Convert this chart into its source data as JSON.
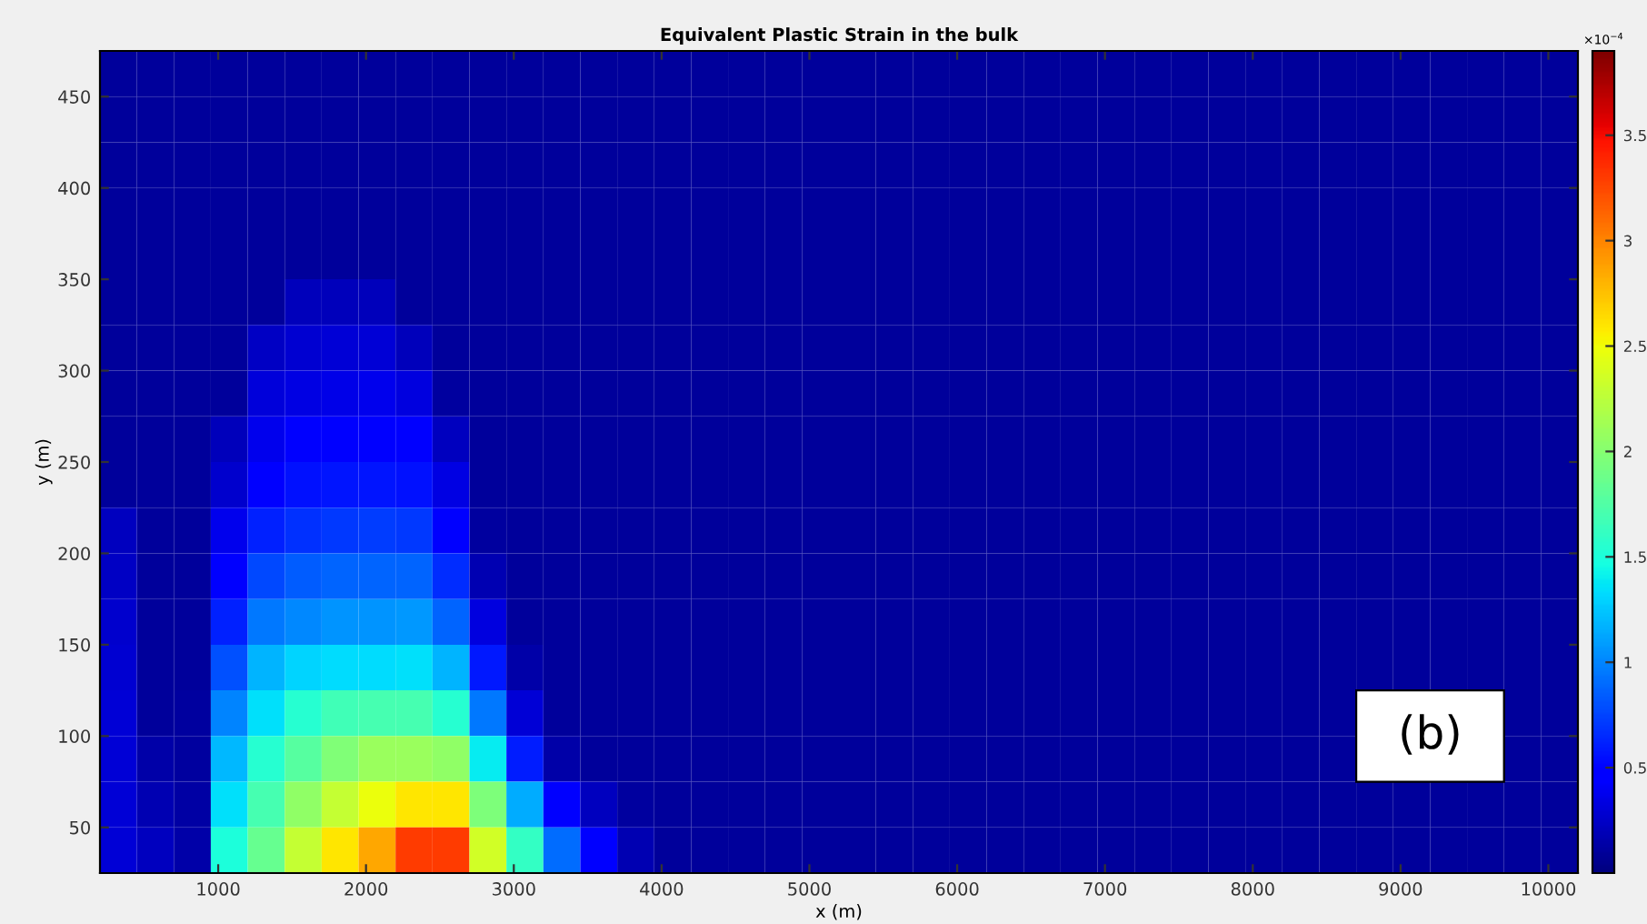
{
  "chart_data": {
    "type": "heatmap",
    "title": "Equivalent Plastic Strain in the bulk",
    "xlabel": "x (m)",
    "ylabel": "y (m)",
    "clabel": "×10$^{−4}$",
    "annotations": [
      "(b)"
    ],
    "x": [
      325,
      575,
      825,
      1075,
      1325,
      1575,
      1825,
      2075,
      2325,
      2575,
      2825,
      3075,
      3325,
      3575,
      3825,
      4075,
      4325,
      4575,
      4825,
      5075,
      5325,
      5575,
      5825,
      6075,
      6325,
      6575,
      6825,
      7075,
      7325,
      7575,
      7825,
      8075,
      8325,
      8575,
      8825,
      9075,
      9325,
      9575,
      9825,
      10075
    ],
    "y": [
      462.5,
      437.5,
      412.5,
      387.5,
      362.5,
      337.5,
      312.5,
      287.5,
      262.5,
      237.5,
      212.5,
      187.5,
      162.5,
      137.5,
      112.5,
      87.5,
      62.5,
      37.5
    ],
    "xlim": [
      200,
      10200
    ],
    "xticks": [
      1000,
      2000,
      3000,
      4000,
      5000,
      6000,
      7000,
      8000,
      9000,
      10000
    ],
    "ylim": [
      25,
      475
    ],
    "yticks": [
      50,
      100,
      150,
      200,
      250,
      300,
      350,
      400,
      450
    ],
    "clim": [
      0,
      3.9
    ],
    "cticks": [
      0.5,
      1,
      1.5,
      2,
      2.5,
      3,
      3.5
    ],
    "cells": [
      [
        0.1,
        0.1,
        0.1,
        0.1,
        0.1,
        0.1,
        0.1,
        0.1,
        0.1,
        0.1,
        0.1,
        0.1,
        0.1,
        0.1,
        0.1,
        0.1,
        0.1,
        0.1,
        0.1,
        0.1,
        0.1,
        0.1,
        0.1,
        0.1,
        0.1,
        0.1,
        0.1,
        0.1,
        0.1,
        0.1,
        0.1,
        0.1,
        0.1,
        0.1,
        0.1,
        0.1,
        0.1,
        0.1,
        0.1,
        0.1
      ],
      [
        0.1,
        0.1,
        0.1,
        0.1,
        0.1,
        0.1,
        0.1,
        0.1,
        0.1,
        0.1,
        0.1,
        0.1,
        0.1,
        0.1,
        0.1,
        0.1,
        0.1,
        0.1,
        0.1,
        0.1,
        0.1,
        0.1,
        0.1,
        0.1,
        0.1,
        0.1,
        0.1,
        0.1,
        0.1,
        0.1,
        0.1,
        0.1,
        0.1,
        0.1,
        0.1,
        0.1,
        0.1,
        0.1,
        0.1,
        0.1
      ],
      [
        0.1,
        0.1,
        0.1,
        0.1,
        0.1,
        0.1,
        0.1,
        0.1,
        0.1,
        0.1,
        0.1,
        0.1,
        0.1,
        0.1,
        0.1,
        0.1,
        0.1,
        0.1,
        0.1,
        0.1,
        0.1,
        0.1,
        0.1,
        0.1,
        0.1,
        0.1,
        0.1,
        0.1,
        0.1,
        0.1,
        0.1,
        0.1,
        0.1,
        0.1,
        0.1,
        0.1,
        0.1,
        0.1,
        0.1,
        0.1
      ],
      [
        0.1,
        0.1,
        0.1,
        0.1,
        0.1,
        0.1,
        0.1,
        0.1,
        0.1,
        0.1,
        0.1,
        0.1,
        0.1,
        0.1,
        0.1,
        0.1,
        0.1,
        0.1,
        0.1,
        0.1,
        0.1,
        0.1,
        0.1,
        0.1,
        0.1,
        0.1,
        0.1,
        0.1,
        0.1,
        0.1,
        0.1,
        0.1,
        0.1,
        0.1,
        0.1,
        0.1,
        0.1,
        0.1,
        0.1,
        0.1
      ],
      [
        0.1,
        0.1,
        0.1,
        0.1,
        0.1,
        0.1,
        0.1,
        0.1,
        0.1,
        0.1,
        0.1,
        0.1,
        0.1,
        0.1,
        0.1,
        0.1,
        0.1,
        0.1,
        0.1,
        0.1,
        0.1,
        0.1,
        0.1,
        0.1,
        0.1,
        0.1,
        0.1,
        0.1,
        0.1,
        0.1,
        0.1,
        0.1,
        0.1,
        0.1,
        0.1,
        0.1,
        0.1,
        0.1,
        0.1,
        0.1
      ],
      [
        0.1,
        0.1,
        0.1,
        0.1,
        0.1,
        0.2,
        0.21,
        0.2,
        0.1,
        0.1,
        0.1,
        0.1,
        0.1,
        0.1,
        0.1,
        0.1,
        0.1,
        0.1,
        0.1,
        0.1,
        0.1,
        0.1,
        0.1,
        0.1,
        0.1,
        0.1,
        0.1,
        0.1,
        0.1,
        0.1,
        0.1,
        0.1,
        0.1,
        0.1,
        0.1,
        0.1,
        0.1,
        0.1,
        0.1,
        0.1
      ],
      [
        0.1,
        0.1,
        0.1,
        0.1,
        0.24,
        0.28,
        0.29,
        0.29,
        0.2,
        0.1,
        0.1,
        0.1,
        0.1,
        0.1,
        0.1,
        0.1,
        0.1,
        0.1,
        0.1,
        0.1,
        0.1,
        0.1,
        0.1,
        0.1,
        0.1,
        0.1,
        0.1,
        0.1,
        0.1,
        0.1,
        0.1,
        0.1,
        0.1,
        0.1,
        0.1,
        0.1,
        0.1,
        0.1,
        0.1,
        0.1
      ],
      [
        0.1,
        0.1,
        0.1,
        0.1,
        0.31,
        0.35,
        0.36,
        0.37,
        0.32,
        0.12,
        0.1,
        0.1,
        0.1,
        0.1,
        0.1,
        0.1,
        0.1,
        0.1,
        0.1,
        0.1,
        0.1,
        0.1,
        0.1,
        0.1,
        0.1,
        0.1,
        0.1,
        0.1,
        0.1,
        0.1,
        0.1,
        0.1,
        0.1,
        0.1,
        0.1,
        0.1,
        0.1,
        0.1,
        0.1,
        0.1
      ],
      [
        0.1,
        0.1,
        0.1,
        0.2,
        0.38,
        0.44,
        0.47,
        0.47,
        0.43,
        0.22,
        0.1,
        0.1,
        0.1,
        0.1,
        0.1,
        0.1,
        0.1,
        0.1,
        0.1,
        0.1,
        0.1,
        0.1,
        0.1,
        0.1,
        0.1,
        0.1,
        0.1,
        0.1,
        0.1,
        0.1,
        0.1,
        0.1,
        0.1,
        0.1,
        0.1,
        0.1,
        0.1,
        0.1,
        0.1,
        0.1
      ],
      [
        0.1,
        0.1,
        0.1,
        0.27,
        0.5,
        0.56,
        0.57,
        0.57,
        0.56,
        0.35,
        0.1,
        0.1,
        0.1,
        0.1,
        0.1,
        0.1,
        0.1,
        0.1,
        0.1,
        0.1,
        0.1,
        0.1,
        0.1,
        0.1,
        0.1,
        0.1,
        0.1,
        0.1,
        0.1,
        0.1,
        0.1,
        0.1,
        0.1,
        0.1,
        0.1,
        0.1,
        0.1,
        0.1,
        0.1,
        0.1
      ],
      [
        0.22,
        0.1,
        0.1,
        0.37,
        0.62,
        0.68,
        0.71,
        0.72,
        0.71,
        0.48,
        0.11,
        0.1,
        0.1,
        0.1,
        0.1,
        0.1,
        0.1,
        0.1,
        0.1,
        0.1,
        0.1,
        0.1,
        0.1,
        0.1,
        0.1,
        0.1,
        0.1,
        0.1,
        0.1,
        0.1,
        0.1,
        0.1,
        0.1,
        0.1,
        0.1,
        0.1,
        0.1,
        0.1,
        0.1,
        0.1
      ],
      [
        0.24,
        0.1,
        0.1,
        0.48,
        0.77,
        0.84,
        0.87,
        0.88,
        0.88,
        0.66,
        0.18,
        0.1,
        0.1,
        0.1,
        0.1,
        0.1,
        0.1,
        0.1,
        0.1,
        0.1,
        0.1,
        0.1,
        0.1,
        0.1,
        0.1,
        0.1,
        0.1,
        0.1,
        0.1,
        0.1,
        0.1,
        0.1,
        0.1,
        0.1,
        0.1,
        0.1,
        0.1,
        0.1,
        0.1,
        0.1
      ],
      [
        0.26,
        0.1,
        0.1,
        0.62,
        0.95,
        1.02,
        1.06,
        1.06,
        1.07,
        0.88,
        0.32,
        0.1,
        0.1,
        0.1,
        0.1,
        0.1,
        0.1,
        0.1,
        0.1,
        0.1,
        0.1,
        0.1,
        0.1,
        0.1,
        0.1,
        0.1,
        0.1,
        0.1,
        0.1,
        0.1,
        0.1,
        0.1,
        0.1,
        0.1,
        0.1,
        0.1,
        0.1,
        0.1,
        0.1,
        0.1
      ],
      [
        0.28,
        0.1,
        0.1,
        0.8,
        1.18,
        1.3,
        1.33,
        1.34,
        1.35,
        1.18,
        0.58,
        0.15,
        0.1,
        0.1,
        0.1,
        0.1,
        0.1,
        0.1,
        0.1,
        0.1,
        0.1,
        0.1,
        0.1,
        0.1,
        0.1,
        0.1,
        0.1,
        0.1,
        0.1,
        0.1,
        0.1,
        0.1,
        0.1,
        0.1,
        0.1,
        0.1,
        0.1,
        0.1,
        0.1,
        0.1
      ],
      [
        0.3,
        0.1,
        0.12,
        1.0,
        1.35,
        1.54,
        1.67,
        1.7,
        1.7,
        1.55,
        0.95,
        0.3,
        0.1,
        0.1,
        0.1,
        0.1,
        0.1,
        0.1,
        0.1,
        0.1,
        0.1,
        0.1,
        0.1,
        0.1,
        0.1,
        0.1,
        0.1,
        0.1,
        0.1,
        0.1,
        0.1,
        0.1,
        0.1,
        0.1,
        null,
        null,
        null,
        null,
        0.1,
        0.1
      ],
      [
        0.3,
        0.14,
        0.12,
        1.2,
        1.55,
        1.77,
        1.97,
        2.09,
        2.1,
        2.05,
        1.4,
        0.6,
        0.15,
        0.1,
        0.1,
        0.1,
        0.1,
        0.1,
        0.1,
        0.1,
        0.1,
        0.1,
        0.1,
        0.1,
        0.1,
        0.1,
        0.1,
        0.1,
        0.1,
        0.1,
        0.1,
        0.1,
        0.1,
        0.1,
        null,
        null,
        null,
        null,
        0.1,
        0.1
      ],
      [
        0.3,
        0.18,
        0.13,
        1.35,
        1.7,
        2.05,
        2.3,
        2.47,
        2.6,
        2.6,
        1.95,
        1.15,
        0.5,
        0.22,
        0.11,
        0.1,
        0.1,
        0.1,
        0.1,
        0.1,
        0.1,
        0.1,
        0.1,
        0.1,
        0.1,
        0.1,
        0.1,
        0.1,
        0.1,
        0.1,
        0.1,
        0.1,
        0.1,
        0.1,
        0.1,
        0.1,
        0.1,
        0.1,
        0.1,
        0.1
      ],
      [
        0.3,
        0.22,
        0.15,
        1.5,
        1.85,
        2.3,
        2.6,
        2.85,
        3.3,
        3.3,
        2.35,
        1.6,
        0.9,
        0.45,
        0.18,
        0.1,
        0.1,
        0.1,
        0.1,
        0.1,
        0.1,
        0.1,
        0.1,
        0.1,
        0.1,
        0.1,
        0.1,
        0.1,
        0.1,
        0.1,
        0.1,
        0.1,
        0.1,
        0.1,
        0.1,
        0.1,
        0.1,
        0.1,
        0.1,
        0.1
      ]
    ]
  }
}
